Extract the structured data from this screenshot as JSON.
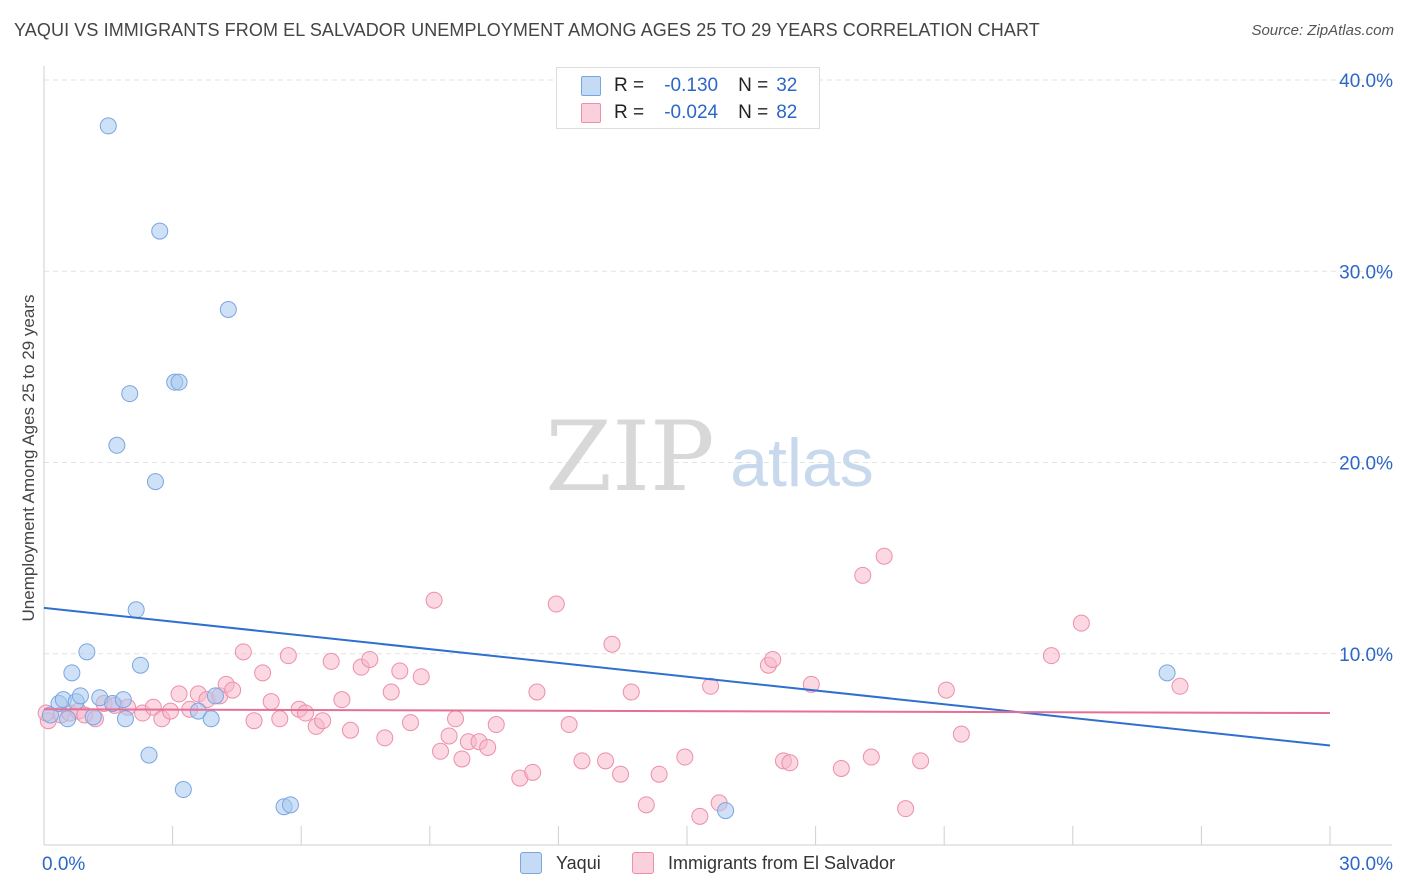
{
  "title": "YAQUI VS IMMIGRANTS FROM EL SALVADOR UNEMPLOYMENT AMONG AGES 25 TO 29 YEARS CORRELATION CHART",
  "source": "Source: ZipAtlas.com",
  "watermark": {
    "zip": "ZIP",
    "atlas": "atlas"
  },
  "legend_stats": [
    {
      "r_label": "R =",
      "r_value": "-0.130",
      "n_label": "N =",
      "n_value": "32",
      "color": "#a8c8f0",
      "border": "#7aa6e0"
    },
    {
      "r_label": "R =",
      "r_value": "-0.024",
      "n_label": "N =",
      "n_value": "82",
      "color": "#f7b8cb",
      "border": "#ec8fab"
    }
  ],
  "chart_data": {
    "type": "scatter",
    "title": "YAQUI VS IMMIGRANTS FROM EL SALVADOR UNEMPLOYMENT AMONG AGES 25 TO 29 YEARS CORRELATION CHART",
    "xlabel": "",
    "ylabel": "Unemployment Among Ages 25 to 29 years",
    "xlim": [
      0,
      30
    ],
    "ylim": [
      0,
      40
    ],
    "x_tick_labels": [
      "0.0%",
      "30.0%"
    ],
    "y_tick_values": [
      10,
      20,
      30,
      40
    ],
    "y_tick_labels": [
      "10.0%",
      "20.0%",
      "30.0%",
      "40.0%"
    ],
    "grid": true,
    "legend_position": "bottom-center",
    "series": [
      {
        "name": "Yaqui",
        "color": "#a8c8f0",
        "stroke": "#7aa6e0",
        "line_color": "#2f6fd0",
        "trend": [
          [
            0,
            12.4
          ],
          [
            30,
            5.2
          ]
        ],
        "points": [
          [
            0.15,
            6.8
          ],
          [
            0.35,
            7.4
          ],
          [
            0.45,
            7.6
          ],
          [
            0.55,
            6.6
          ],
          [
            0.65,
            9.0
          ],
          [
            0.75,
            7.5
          ],
          [
            0.85,
            7.8
          ],
          [
            1.0,
            10.1
          ],
          [
            1.15,
            6.7
          ],
          [
            1.3,
            7.7
          ],
          [
            1.5,
            37.6
          ],
          [
            1.6,
            7.4
          ],
          [
            1.7,
            20.9
          ],
          [
            1.85,
            7.6
          ],
          [
            1.9,
            6.6
          ],
          [
            2.0,
            23.6
          ],
          [
            2.15,
            12.3
          ],
          [
            2.25,
            9.4
          ],
          [
            2.45,
            4.7
          ],
          [
            2.6,
            19.0
          ],
          [
            2.7,
            32.1
          ],
          [
            3.05,
            24.2
          ],
          [
            3.15,
            24.2
          ],
          [
            3.25,
            2.9
          ],
          [
            3.6,
            7.0
          ],
          [
            3.9,
            6.6
          ],
          [
            4.0,
            7.8
          ],
          [
            4.3,
            28.0
          ],
          [
            5.6,
            2.0
          ],
          [
            5.75,
            2.1
          ],
          [
            15.9,
            1.8
          ],
          [
            26.2,
            9.0
          ]
        ]
      },
      {
        "name": "Immigrants from El Salvador",
        "color": "#f7b8cb",
        "stroke": "#ec8fab",
        "line_color": "#e46f97",
        "trend": [
          [
            0,
            7.1
          ],
          [
            30,
            6.9
          ]
        ],
        "points": [
          [
            0.1,
            6.5
          ],
          [
            0.4,
            6.8
          ],
          [
            0.6,
            6.9
          ],
          [
            0.8,
            7.0
          ],
          [
            0.95,
            6.8
          ],
          [
            1.2,
            6.6
          ],
          [
            1.4,
            7.4
          ],
          [
            1.65,
            7.3
          ],
          [
            1.95,
            7.2
          ],
          [
            2.3,
            6.9
          ],
          [
            2.55,
            7.2
          ],
          [
            2.75,
            6.6
          ],
          [
            2.95,
            7.0
          ],
          [
            3.15,
            7.9
          ],
          [
            3.4,
            7.1
          ],
          [
            3.6,
            7.9
          ],
          [
            3.8,
            7.6
          ],
          [
            4.1,
            7.8
          ],
          [
            4.25,
            8.4
          ],
          [
            4.4,
            8.1
          ],
          [
            4.65,
            10.1
          ],
          [
            4.9,
            6.5
          ],
          [
            5.1,
            9.0
          ],
          [
            5.3,
            7.5
          ],
          [
            5.5,
            6.6
          ],
          [
            5.7,
            9.9
          ],
          [
            5.95,
            7.1
          ],
          [
            6.1,
            6.9
          ],
          [
            6.35,
            6.2
          ],
          [
            6.5,
            6.5
          ],
          [
            6.7,
            9.6
          ],
          [
            6.95,
            7.6
          ],
          [
            7.15,
            6.0
          ],
          [
            7.4,
            9.3
          ],
          [
            7.6,
            9.7
          ],
          [
            7.95,
            5.6
          ],
          [
            8.1,
            8.0
          ],
          [
            8.3,
            9.1
          ],
          [
            8.55,
            6.4
          ],
          [
            8.8,
            8.8
          ],
          [
            9.1,
            12.8
          ],
          [
            9.25,
            4.9
          ],
          [
            9.45,
            5.7
          ],
          [
            9.6,
            6.6
          ],
          [
            9.75,
            4.5
          ],
          [
            9.9,
            5.4
          ],
          [
            10.15,
            5.4
          ],
          [
            10.35,
            5.1
          ],
          [
            10.55,
            6.3
          ],
          [
            11.1,
            3.5
          ],
          [
            11.4,
            3.8
          ],
          [
            11.5,
            8.0
          ],
          [
            11.95,
            12.6
          ],
          [
            12.25,
            6.3
          ],
          [
            12.55,
            4.4
          ],
          [
            13.1,
            4.4
          ],
          [
            13.25,
            10.5
          ],
          [
            13.45,
            3.7
          ],
          [
            13.7,
            8.0
          ],
          [
            14.05,
            2.1
          ],
          [
            14.35,
            3.7
          ],
          [
            14.95,
            4.6
          ],
          [
            15.3,
            1.5
          ],
          [
            15.55,
            8.3
          ],
          [
            15.75,
            2.2
          ],
          [
            16.9,
            9.4
          ],
          [
            17.0,
            9.7
          ],
          [
            17.25,
            4.4
          ],
          [
            17.4,
            4.3
          ],
          [
            17.9,
            8.4
          ],
          [
            18.6,
            4.0
          ],
          [
            19.1,
            14.1
          ],
          [
            19.3,
            4.6
          ],
          [
            19.6,
            15.1
          ],
          [
            20.1,
            1.9
          ],
          [
            20.45,
            4.4
          ],
          [
            21.05,
            8.1
          ],
          [
            21.4,
            5.8
          ],
          [
            23.5,
            9.9
          ],
          [
            24.2,
            11.6
          ],
          [
            26.5,
            8.3
          ],
          [
            0.05,
            6.9
          ]
        ]
      }
    ]
  },
  "bottom_legend": [
    {
      "label": "Yaqui",
      "color": "#a8c8f0",
      "border": "#7aa6e0"
    },
    {
      "label": "Immigrants from El Salvador",
      "color": "#f7b8cb",
      "border": "#ec8fab"
    }
  ]
}
